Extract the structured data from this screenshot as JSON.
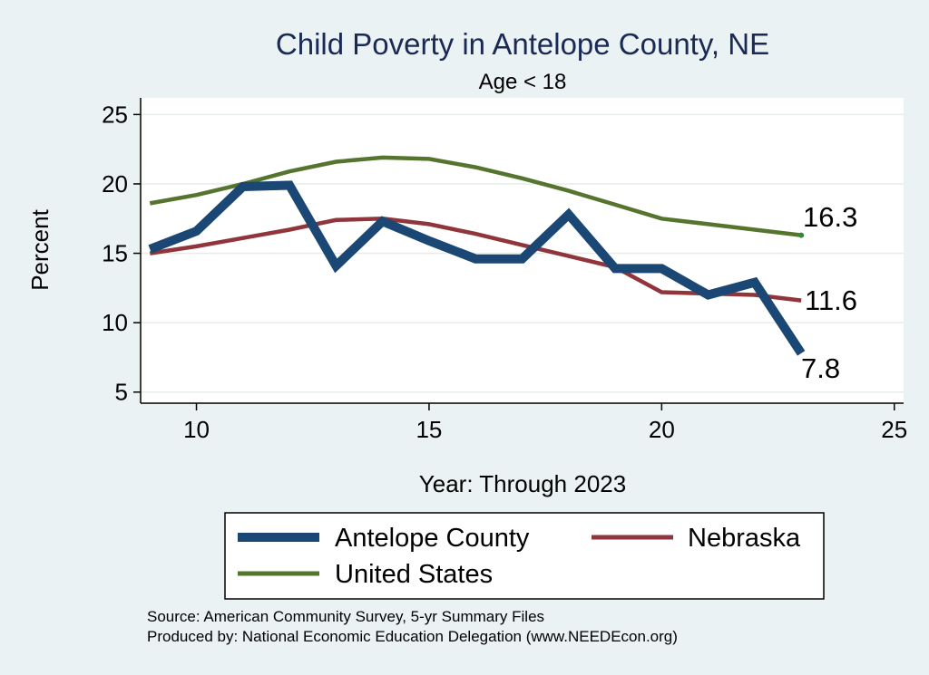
{
  "chart_data": {
    "type": "line",
    "title": "Child Poverty in Antelope County, NE",
    "subtitle": "Age < 18",
    "xlabel": "Year: Through 2023",
    "ylabel": "Percent",
    "xlim": [
      8.8,
      25.2
    ],
    "ylim": [
      4.2,
      26.2
    ],
    "xticks": [
      10,
      15,
      20,
      25
    ],
    "yticks": [
      5,
      10,
      15,
      20,
      25
    ],
    "grid": true,
    "series": [
      {
        "name": "Antelope County",
        "color": "#1a4773",
        "x": [
          9,
          10,
          11,
          12,
          13,
          14,
          15,
          16,
          17,
          18,
          19,
          20,
          21,
          22,
          23
        ],
        "values": [
          15.3,
          16.6,
          19.8,
          19.9,
          14.1,
          17.3,
          15.9,
          14.6,
          14.6,
          17.8,
          13.9,
          13.9,
          12.0,
          12.9,
          7.8
        ]
      },
      {
        "name": "Nebraska",
        "color": "#90353b",
        "x": [
          9,
          10,
          11,
          12,
          13,
          14,
          15,
          16,
          17,
          18,
          19,
          20,
          21,
          22,
          23
        ],
        "values": [
          15.0,
          15.5,
          16.1,
          16.7,
          17.4,
          17.5,
          17.1,
          16.4,
          15.6,
          14.8,
          14.0,
          12.2,
          12.1,
          12.0,
          11.6
        ]
      },
      {
        "name": "United States",
        "color": "#55752f",
        "x": [
          9,
          10,
          11,
          12,
          13,
          14,
          15,
          16,
          17,
          18,
          19,
          20,
          21,
          22,
          23
        ],
        "values": [
          18.6,
          19.2,
          20.0,
          20.9,
          21.6,
          21.9,
          21.8,
          21.2,
          20.4,
          19.5,
          18.5,
          17.5,
          17.1,
          16.7,
          16.3
        ]
      }
    ],
    "end_labels": [
      "7.8",
      "11.6",
      "16.3"
    ],
    "legend": {
      "placement": "bottom",
      "entries": [
        "Antelope County",
        "Nebraska",
        "United States"
      ]
    },
    "notes": [
      "Source: American Community Survey, 5-yr Summary Files",
      "Produced by: National Economic Education Delegation (www.NEEDEcon.org)"
    ]
  },
  "colors": {
    "background": "#eaf2f3",
    "plot_area": "#ffffff",
    "grid": "#e6ece9",
    "title": "#1a2a55",
    "endpoint_dot": "#2e8b2e"
  }
}
